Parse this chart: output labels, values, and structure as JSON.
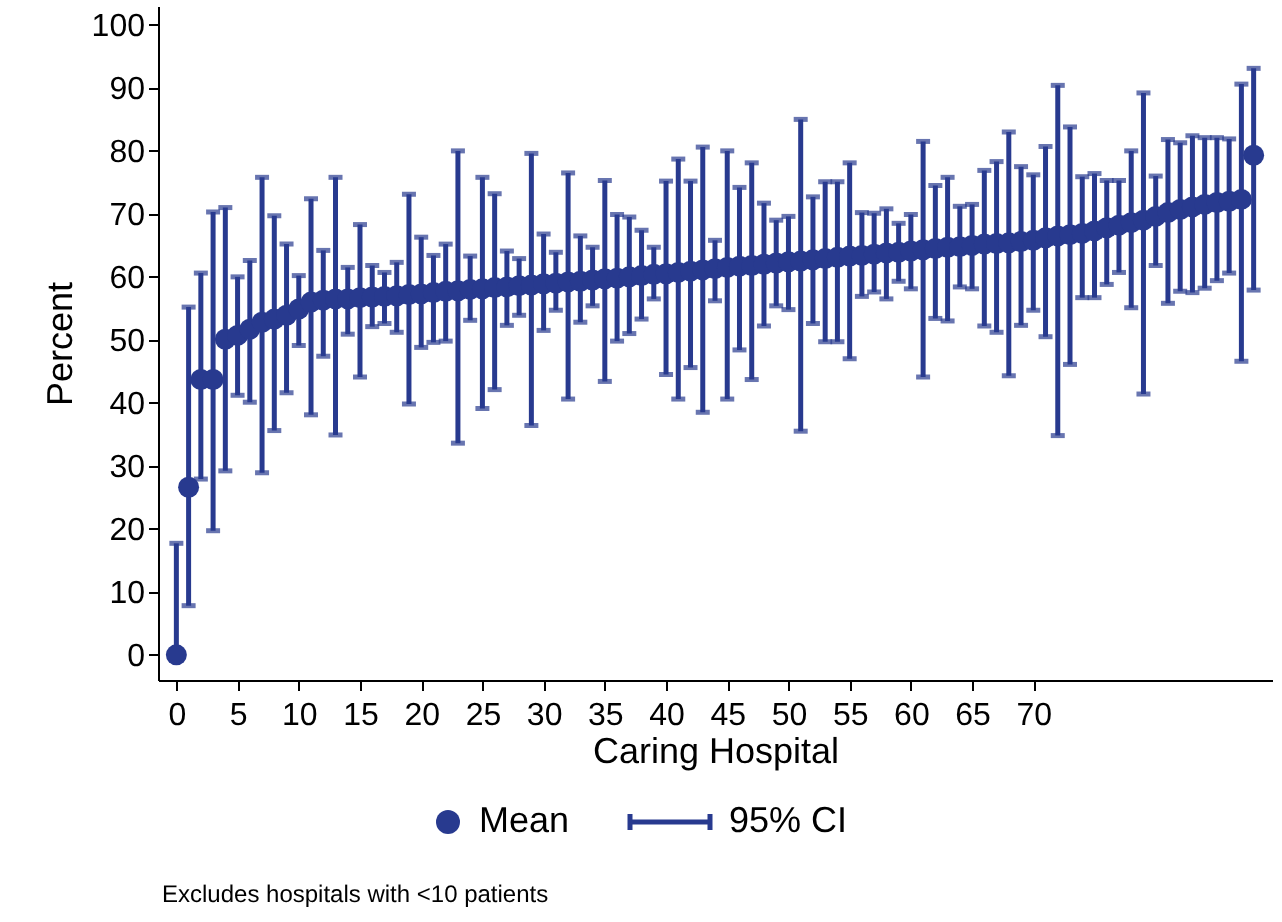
{
  "chart_data": {
    "type": "scatter",
    "xlabel": "Caring Hospital",
    "ylabel": "Percent",
    "x": [
      0,
      1,
      2,
      3,
      4,
      5,
      6,
      7,
      8,
      9,
      10,
      11,
      12,
      13,
      14,
      15,
      16,
      17,
      18,
      19,
      20,
      21,
      22,
      23,
      24,
      25,
      26,
      27,
      28,
      29,
      30,
      31,
      32,
      33,
      34,
      35,
      36,
      37,
      38,
      39,
      40,
      41,
      42,
      43,
      44,
      45,
      46,
      47,
      48,
      49,
      50,
      51,
      52,
      53,
      54,
      55,
      56,
      57,
      58,
      59,
      60,
      61,
      62,
      63,
      64,
      65,
      66,
      67,
      68,
      69,
      70,
      71,
      72,
      73,
      74,
      75,
      76,
      77,
      78,
      79,
      80,
      81,
      82,
      83,
      84,
      85,
      86,
      87,
      88
    ],
    "xlim": [
      -1.5,
      89.5
    ],
    "xticks": [
      0,
      5,
      10,
      15,
      20,
      25,
      30,
      35,
      40,
      45,
      50,
      55,
      60,
      65,
      70
    ],
    "ylim": [
      -4,
      103
    ],
    "yticks": [
      0,
      10,
      20,
      30,
      40,
      50,
      60,
      70,
      80,
      90,
      100
    ],
    "series": [
      {
        "name": "Mean",
        "color": "#283a8f",
        "values": [
          0,
          26.6,
          43.7,
          43.7,
          50.1,
          50.7,
          51.7,
          52.8,
          53.3,
          53.9,
          54.9,
          56.0,
          56.3,
          56.5,
          56.5,
          56.7,
          56.8,
          56.9,
          57.0,
          57.2,
          57.3,
          57.5,
          57.7,
          57.8,
          58.0,
          58.1,
          58.3,
          58.4,
          58.6,
          58.7,
          58.9,
          59.0,
          59.2,
          59.3,
          59.5,
          59.7,
          59.8,
          60.0,
          60.2,
          60.4,
          60.5,
          60.7,
          60.9,
          61.1,
          61.3,
          61.5,
          61.7,
          61.8,
          62.0,
          62.2,
          62.4,
          62.5,
          62.7,
          62.9,
          63.1,
          63.3,
          63.4,
          63.6,
          63.8,
          63.9,
          64.1,
          64.3,
          64.5,
          64.7,
          64.8,
          65.0,
          65.2,
          65.3,
          65.4,
          65.6,
          65.8,
          66.2,
          66.5,
          66.7,
          66.9,
          67.3,
          67.8,
          68.2,
          68.6,
          69.0,
          69.6,
          70.2,
          70.7,
          71.1,
          71.5,
          71.8,
          72.0,
          72.3,
          79.3
        ],
        "errors": [
          [
            0,
            17.7
          ],
          [
            7.8,
            55.2
          ],
          [
            27.9,
            60.6
          ],
          [
            19.7,
            70.3
          ],
          [
            29.2,
            71.0
          ],
          [
            41.2,
            60.0
          ],
          [
            40.1,
            62.6
          ],
          [
            28.9,
            75.8
          ],
          [
            35.6,
            69.7
          ],
          [
            41.6,
            65.2
          ],
          [
            49.1,
            60.2
          ],
          [
            38.1,
            72.4
          ],
          [
            47.4,
            64.2
          ],
          [
            34.9,
            75.8
          ],
          [
            50.9,
            61.5
          ],
          [
            44.1,
            68.3
          ],
          [
            52.1,
            61.8
          ],
          [
            52.6,
            60.7
          ],
          [
            51.2,
            62.3
          ],
          [
            39.8,
            73.1
          ],
          [
            48.8,
            66.3
          ],
          [
            49.6,
            63.4
          ],
          [
            49.8,
            65.2
          ],
          [
            33.6,
            80.0
          ],
          [
            53.1,
            63.3
          ],
          [
            39.1,
            75.8
          ],
          [
            42.1,
            73.2
          ],
          [
            52.3,
            64.1
          ],
          [
            53.9,
            62.9
          ],
          [
            36.4,
            79.6
          ],
          [
            51.5,
            66.8
          ],
          [
            54.7,
            63.9
          ],
          [
            40.6,
            76.5
          ],
          [
            52.8,
            66.5
          ],
          [
            55.4,
            64.7
          ],
          [
            43.4,
            75.3
          ],
          [
            49.8,
            69.9
          ],
          [
            51.0,
            69.5
          ],
          [
            53.3,
            67.4
          ],
          [
            56.5,
            64.7
          ],
          [
            44.5,
            75.2
          ],
          [
            40.6,
            78.7
          ],
          [
            45.6,
            75.2
          ],
          [
            38.5,
            80.6
          ],
          [
            56.2,
            65.8
          ],
          [
            40.6,
            80.0
          ],
          [
            48.4,
            74.2
          ],
          [
            43.7,
            78.1
          ],
          [
            52.2,
            71.7
          ],
          [
            55.4,
            69.0
          ],
          [
            54.8,
            69.6
          ],
          [
            35.5,
            85.0
          ],
          [
            52.6,
            72.7
          ],
          [
            49.7,
            75.1
          ],
          [
            49.7,
            75.1
          ],
          [
            47.0,
            78.1
          ],
          [
            56.9,
            70.2
          ],
          [
            57.6,
            70.1
          ],
          [
            56.5,
            70.8
          ],
          [
            59.3,
            68.5
          ],
          [
            58.1,
            69.9
          ],
          [
            44.1,
            81.5
          ],
          [
            53.4,
            74.5
          ],
          [
            53.0,
            75.8
          ],
          [
            58.4,
            71.2
          ],
          [
            58.1,
            71.5
          ],
          [
            52.2,
            76.9
          ],
          [
            51.2,
            78.3
          ],
          [
            44.3,
            83.0
          ],
          [
            52.3,
            77.5
          ],
          [
            54.7,
            76.2
          ],
          [
            50.5,
            80.7
          ],
          [
            34.8,
            90.4
          ],
          [
            46.1,
            83.8
          ],
          [
            56.7,
            75.9
          ],
          [
            56.7,
            76.4
          ],
          [
            58.8,
            75.3
          ],
          [
            60.7,
            75.3
          ],
          [
            55.1,
            80.0
          ],
          [
            41.4,
            89.2
          ],
          [
            61.8,
            76.0
          ],
          [
            55.8,
            81.8
          ],
          [
            57.7,
            81.3
          ],
          [
            57.5,
            82.4
          ],
          [
            58.2,
            82.1
          ],
          [
            59.4,
            82.1
          ],
          [
            60.6,
            81.9
          ],
          [
            46.6,
            90.6
          ],
          [
            57.9,
            93.1
          ]
        ]
      }
    ],
    "marker": "circle",
    "grid": false,
    "legend": "bottom",
    "annotations": [
      "95% CI",
      "Excludes hospitals with <10 patients"
    ]
  }
}
